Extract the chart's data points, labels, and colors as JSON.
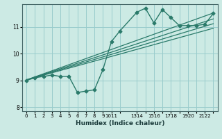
{
  "xlabel": "Humidex (Indice chaleur)",
  "bg_color": "#cceae4",
  "grid_color": "#99cccc",
  "line_color": "#2a7a6a",
  "x_data": [
    0,
    1,
    2,
    3,
    4,
    5,
    6,
    7,
    8,
    9,
    10,
    11,
    13,
    14,
    15,
    16,
    17,
    18,
    19,
    20,
    21,
    22
  ],
  "y_data": [
    9.0,
    9.1,
    9.15,
    9.2,
    9.15,
    9.15,
    8.55,
    8.6,
    8.65,
    9.4,
    10.45,
    10.85,
    11.55,
    11.7,
    11.15,
    11.65,
    11.35,
    11.05,
    11.05,
    11.05,
    11.1,
    11.5
  ],
  "ylim": [
    7.85,
    11.85
  ],
  "xlim": [
    -0.5,
    22.5
  ],
  "xtick_positions": [
    0,
    1,
    2,
    3,
    4,
    5,
    6,
    7,
    8,
    9,
    10,
    11,
    13,
    14,
    15,
    16,
    17,
    18,
    19,
    20,
    21,
    22
  ],
  "xtick_labels": [
    "0",
    "1",
    "2",
    "3",
    "4",
    "5",
    "6",
    "7",
    "8",
    "9",
    "1011",
    "",
    "1314",
    "",
    "1516",
    "",
    "1718",
    "",
    "1920",
    "",
    "2122",
    ""
  ],
  "yticks": [
    8,
    9,
    10,
    11
  ],
  "trend_lines": [
    {
      "x0": 0,
      "y0": 9.02,
      "x1": 22,
      "y1": 11.52
    },
    {
      "x0": 0,
      "y0": 9.02,
      "x1": 22,
      "y1": 11.3
    },
    {
      "x0": 0,
      "y0": 9.02,
      "x1": 22,
      "y1": 11.12
    },
    {
      "x0": 0,
      "y0": 9.02,
      "x1": 22,
      "y1": 10.95
    }
  ]
}
